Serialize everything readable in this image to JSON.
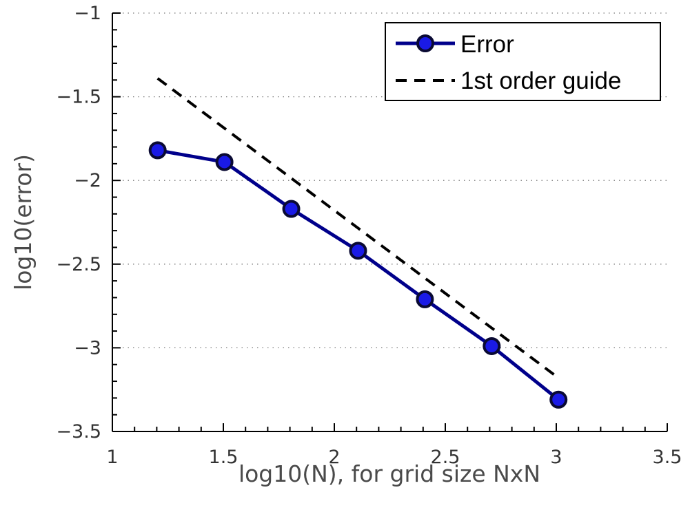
{
  "chart_data": {
    "type": "line",
    "title": "",
    "xlabel": "log10(N), for grid size NxN",
    "ylabel": "log10(error)",
    "xlim": [
      1,
      3.5
    ],
    "ylim": [
      -3.5,
      -1
    ],
    "x_ticks": [
      1,
      1.5,
      2,
      2.5,
      3,
      3.5
    ],
    "x_tick_labels": [
      "1",
      "1.5",
      "2",
      "2.5",
      "3",
      "3.5"
    ],
    "y_ticks": [
      -1,
      -1.5,
      -2,
      -2.5,
      -3,
      -3.5
    ],
    "y_tick_labels": [
      "−1",
      "−1.5",
      "−2",
      "−2.5",
      "−3",
      "−3.5"
    ],
    "grid": "horizontal dotted",
    "legend_position": "top-right",
    "series": [
      {
        "name": "Error",
        "color": "#00008b",
        "marker_face": "#1a1ae6",
        "style": "solid with circle markers",
        "x": [
          1.204,
          1.505,
          1.806,
          2.107,
          2.408,
          2.709,
          3.01
        ],
        "y": [
          -1.82,
          -1.89,
          -2.17,
          -2.42,
          -2.71,
          -2.99,
          -3.31
        ]
      },
      {
        "name": "1st order guide",
        "color": "#000000",
        "style": "dashed",
        "x": [
          1.204,
          3.01
        ],
        "y": [
          -1.39,
          -3.18
        ]
      }
    ]
  }
}
